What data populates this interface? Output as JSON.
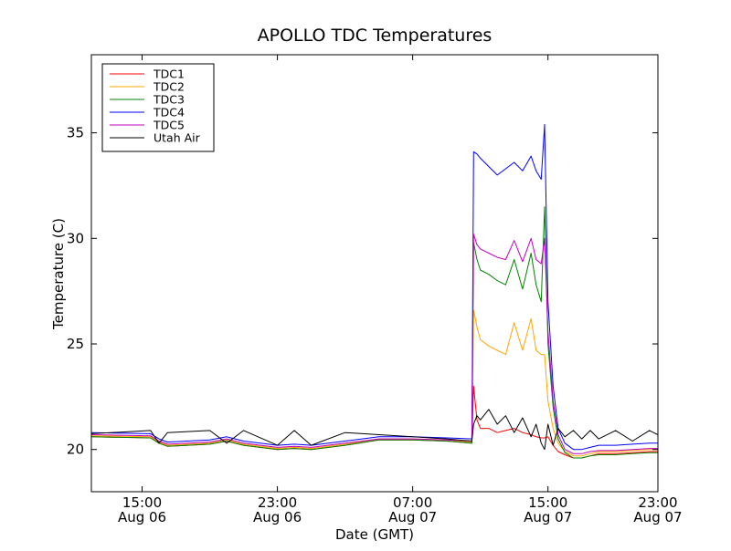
{
  "chart_data": {
    "type": "line",
    "title": "APOLLO TDC Temperatures",
    "xlabel": "Date (GMT)",
    "ylabel": "Temperature (C)",
    "xlim": [
      12.0,
      45.5
    ],
    "ylim": [
      18.0,
      38.7
    ],
    "x_unit": "hours since Aug 06 00:00 GMT",
    "x_ticks": [
      {
        "value": 15,
        "line1": "15:00",
        "line2": "Aug 06"
      },
      {
        "value": 23,
        "line1": "23:00",
        "line2": "Aug 06"
      },
      {
        "value": 31,
        "line1": "07:00",
        "line2": "Aug 07"
      },
      {
        "value": 39,
        "line1": "15:00",
        "line2": "Aug 07"
      },
      {
        "value": 47,
        "line1": "23:00",
        "line2": "Aug 07"
      }
    ],
    "y_ticks": [
      20,
      25,
      30,
      35
    ],
    "legend_position": "top-left",
    "series": [
      {
        "name": "TDC1",
        "color": "#ff0000",
        "x": [
          12.0,
          15.5,
          16.0,
          16.5,
          19.0,
          20.0,
          21.0,
          23.0,
          24.0,
          25.0,
          27.0,
          29.0,
          31.0,
          33.0,
          34.5,
          34.6,
          34.8,
          35.0,
          35.5,
          36.0,
          36.5,
          37.0,
          37.5,
          38.0,
          38.3,
          38.6,
          38.8,
          39.0,
          39.3,
          39.6,
          40.0,
          40.5,
          41.0,
          41.5,
          42.0,
          43.0,
          44.0,
          45.0,
          45.5
        ],
        "values": [
          20.6,
          20.55,
          20.3,
          20.15,
          20.25,
          20.4,
          20.2,
          20.0,
          20.05,
          20.0,
          20.2,
          20.45,
          20.45,
          20.4,
          20.3,
          23.0,
          21.4,
          21.0,
          21.0,
          20.8,
          20.9,
          21.0,
          20.8,
          20.7,
          20.6,
          20.55,
          20.55,
          20.6,
          20.2,
          19.9,
          19.75,
          19.6,
          19.6,
          19.7,
          19.8,
          19.8,
          19.85,
          19.9,
          19.9
        ]
      },
      {
        "name": "TDC2",
        "color": "#ffa500",
        "x": [
          12.0,
          15.5,
          16.0,
          16.5,
          19.0,
          20.0,
          21.0,
          23.0,
          24.0,
          25.0,
          27.0,
          29.0,
          31.0,
          33.0,
          34.5,
          34.6,
          34.8,
          35.0,
          35.5,
          36.0,
          36.5,
          37.0,
          37.5,
          38.0,
          38.3,
          38.6,
          38.8,
          39.0,
          39.3,
          39.6,
          40.0,
          40.5,
          41.0,
          41.5,
          42.0,
          43.0,
          44.0,
          45.0,
          45.5
        ],
        "values": [
          20.65,
          20.6,
          20.35,
          20.2,
          20.3,
          20.45,
          20.25,
          20.05,
          20.1,
          20.05,
          20.25,
          20.5,
          20.5,
          20.45,
          20.35,
          26.6,
          25.8,
          25.2,
          24.9,
          24.7,
          24.5,
          26.0,
          24.7,
          26.2,
          24.7,
          24.5,
          24.5,
          22.3,
          21.0,
          20.3,
          19.9,
          19.7,
          19.7,
          19.8,
          19.9,
          19.9,
          19.95,
          20.0,
          20.0
        ]
      },
      {
        "name": "TDC3",
        "color": "#008000",
        "x": [
          12.0,
          15.5,
          16.0,
          16.5,
          19.0,
          20.0,
          21.0,
          23.0,
          24.0,
          25.0,
          27.0,
          29.0,
          31.0,
          33.0,
          34.5,
          34.6,
          34.8,
          35.0,
          35.5,
          36.0,
          36.5,
          37.0,
          37.5,
          38.0,
          38.3,
          38.6,
          38.8,
          39.0,
          39.3,
          39.6,
          40.0,
          40.5,
          41.0,
          41.5,
          42.0,
          43.0,
          44.0,
          45.0,
          45.5
        ],
        "values": [
          20.6,
          20.55,
          20.3,
          20.15,
          20.25,
          20.4,
          20.2,
          20.0,
          20.05,
          20.0,
          20.2,
          20.45,
          20.45,
          20.4,
          20.3,
          29.8,
          29.0,
          28.5,
          28.3,
          28.0,
          27.8,
          29.0,
          27.6,
          29.3,
          27.8,
          27.0,
          31.5,
          25.0,
          22.0,
          20.5,
          19.85,
          19.6,
          19.6,
          19.7,
          19.75,
          19.75,
          19.8,
          19.85,
          19.85
        ]
      },
      {
        "name": "TDC4",
        "color": "#0000ff",
        "x": [
          12.0,
          15.5,
          16.0,
          16.5,
          19.0,
          20.0,
          21.0,
          23.0,
          24.0,
          25.0,
          27.0,
          29.0,
          31.0,
          33.0,
          34.5,
          34.6,
          34.8,
          35.0,
          35.5,
          36.0,
          36.5,
          37.0,
          37.5,
          38.0,
          38.3,
          38.6,
          38.8,
          39.0,
          39.3,
          39.6,
          40.0,
          40.5,
          41.0,
          41.5,
          42.0,
          43.0,
          44.0,
          45.0,
          45.5
        ],
        "values": [
          20.8,
          20.75,
          20.5,
          20.35,
          20.45,
          20.6,
          20.4,
          20.2,
          20.25,
          20.2,
          20.4,
          20.6,
          20.6,
          20.55,
          20.5,
          34.1,
          34.0,
          33.8,
          33.4,
          33.0,
          33.3,
          33.6,
          33.2,
          33.9,
          33.2,
          32.8,
          35.4,
          27.0,
          23.0,
          21.0,
          20.3,
          20.0,
          20.0,
          20.1,
          20.2,
          20.2,
          20.25,
          20.3,
          20.3
        ]
      },
      {
        "name": "TDC5",
        "color": "#bf00bf",
        "x": [
          12.0,
          15.5,
          16.0,
          16.5,
          19.0,
          20.0,
          21.0,
          23.0,
          24.0,
          25.0,
          27.0,
          29.0,
          31.0,
          33.0,
          34.5,
          34.6,
          34.8,
          35.0,
          35.5,
          36.0,
          36.5,
          37.0,
          37.5,
          38.0,
          38.3,
          38.6,
          38.8,
          39.0,
          39.3,
          39.6,
          40.0,
          40.5,
          41.0,
          41.5,
          42.0,
          43.0,
          44.0,
          45.0,
          45.5
        ],
        "values": [
          20.7,
          20.65,
          20.4,
          20.25,
          20.35,
          20.5,
          20.3,
          20.1,
          20.15,
          20.1,
          20.3,
          20.5,
          20.5,
          20.45,
          20.4,
          30.2,
          29.7,
          29.5,
          29.3,
          29.1,
          29.0,
          29.9,
          28.9,
          30.0,
          29.0,
          28.8,
          30.0,
          25.6,
          22.3,
          20.7,
          20.0,
          19.8,
          19.8,
          19.9,
          19.95,
          19.95,
          20.0,
          20.05,
          20.05
        ]
      },
      {
        "name": "Utah Air",
        "color": "#000000",
        "x": [
          12.0,
          15.5,
          16.0,
          16.5,
          19.0,
          20.0,
          21.0,
          23.0,
          24.0,
          25.0,
          27.0,
          29.0,
          31.0,
          33.0,
          34.5,
          34.6,
          34.8,
          35.0,
          35.5,
          36.0,
          36.5,
          37.0,
          37.5,
          38.0,
          38.3,
          38.6,
          38.8,
          39.0,
          39.3,
          39.6,
          40.0,
          40.5,
          41.0,
          41.5,
          42.0,
          43.0,
          44.0,
          45.0,
          45.5
        ],
        "values": [
          20.75,
          20.9,
          20.3,
          20.8,
          20.9,
          20.3,
          20.9,
          20.2,
          20.9,
          20.2,
          20.8,
          20.7,
          20.6,
          20.5,
          20.4,
          21.2,
          21.6,
          21.4,
          21.9,
          21.2,
          21.6,
          20.8,
          21.5,
          20.6,
          21.2,
          20.3,
          20.0,
          21.2,
          20.2,
          21.0,
          20.6,
          20.9,
          20.5,
          20.9,
          20.5,
          20.9,
          20.4,
          20.9,
          20.7
        ]
      }
    ]
  }
}
